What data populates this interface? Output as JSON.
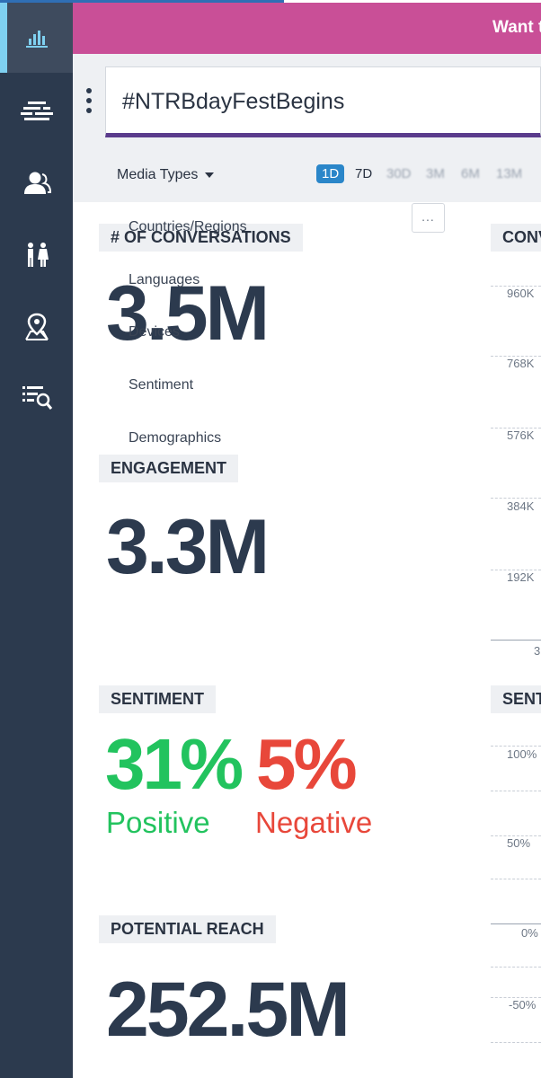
{
  "banner": {
    "text": "Want t",
    "color": "#c94f97"
  },
  "sidebar": {
    "items": [
      {
        "icon": "bar-chart-icon",
        "active": true
      },
      {
        "icon": "stream-icon"
      },
      {
        "icon": "user-icon"
      },
      {
        "icon": "demographics-icon"
      },
      {
        "icon": "location-icon"
      },
      {
        "icon": "search-list-icon"
      }
    ]
  },
  "search": {
    "value": "#NTRBdayFestBegins"
  },
  "filters": {
    "media_types_label": "Media Types",
    "ranges": [
      "1D",
      "7D",
      "30D",
      "3M",
      "6M",
      "13M"
    ],
    "selected_range": "1D"
  },
  "menu": {
    "more_label": "...",
    "items": [
      "Countries/Regions",
      "Languages",
      "Devices",
      "Sentiment",
      "Demographics"
    ]
  },
  "metrics": {
    "conversations": {
      "label": "# OF CONVERSATIONS",
      "value": "3.5M"
    },
    "engagement": {
      "label": "ENGAGEMENT",
      "value": "3.3M"
    },
    "sentiment": {
      "label": "SENTIMENT",
      "positive_value": "31%",
      "positive_label": "Positive",
      "negative_value": "5%",
      "negative_label": "Negative",
      "positive_color": "#22c35e",
      "negative_color": "#e8473a"
    },
    "potential_reach": {
      "label": "POTENTIAL REACH",
      "value": "252.5M"
    }
  },
  "right_charts": {
    "conversations": {
      "label": "CONV",
      "ticks": [
        "960K",
        "768K",
        "576K",
        "384K",
        "192K"
      ],
      "axis_first": "3"
    },
    "sentiment": {
      "label": "SENT",
      "ticks": [
        "100%",
        "50%",
        "0%",
        "-50%"
      ]
    }
  }
}
